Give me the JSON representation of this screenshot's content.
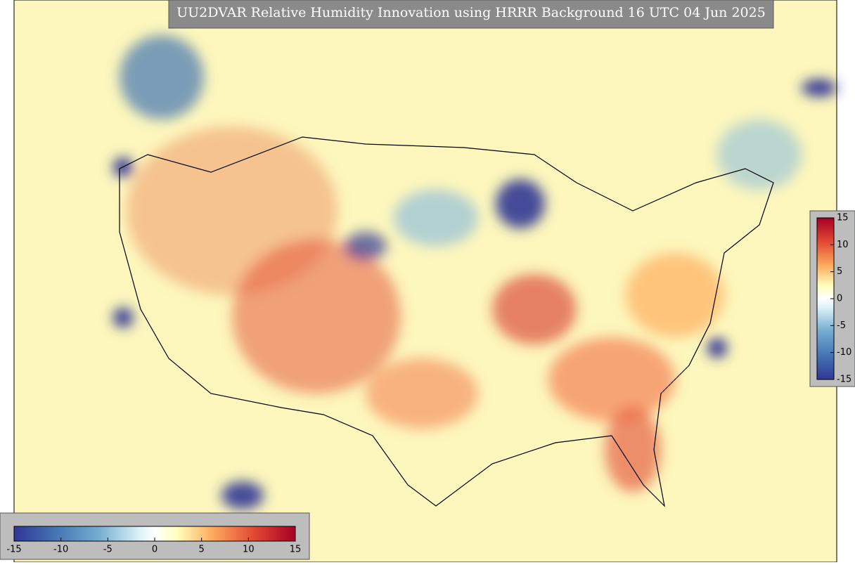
{
  "title": "UU2DVAR Relative Humidity Innovation using HRRR Background 16 UTC 04 Jun 2025",
  "colorbar_horizontal": {
    "range": [
      -15,
      15
    ],
    "ticks": [
      -15,
      -10,
      -5,
      0,
      5,
      10,
      15
    ]
  },
  "colorbar_vertical": {
    "range": [
      -15,
      15
    ],
    "ticks": [
      -15,
      -10,
      -5,
      0,
      5,
      10,
      15
    ]
  }
}
